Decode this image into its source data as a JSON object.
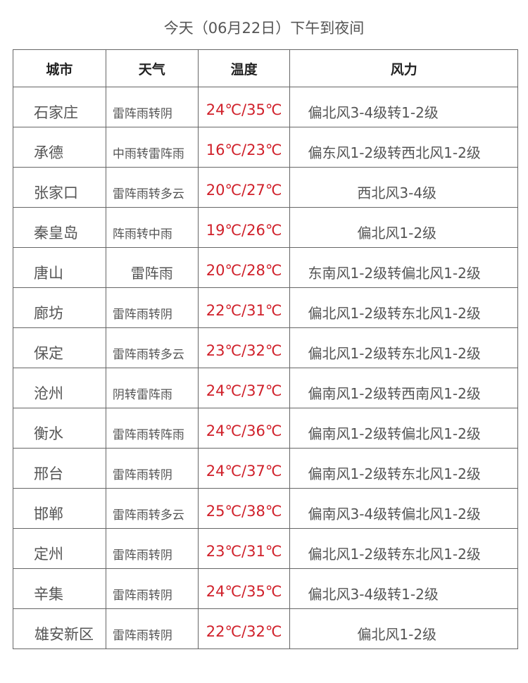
{
  "title": "今天（06月22日）下午到夜间",
  "headers": [
    "城市",
    "天气",
    "温度",
    "风力"
  ],
  "colors": {
    "temperature": "#d0202a",
    "text": "#555555"
  },
  "rows": [
    {
      "city": "石家庄",
      "weather": "雷阵雨转阴",
      "temp": "24℃/35℃",
      "wind": "偏北风3-4级转1-2级"
    },
    {
      "city": "承德",
      "weather": "中雨转雷阵雨",
      "temp": "16℃/23℃",
      "wind": "偏东风1-2级转西北风1-2级"
    },
    {
      "city": "张家口",
      "weather": "雷阵雨转多云",
      "temp": "20℃/27℃",
      "wind": "西北风3-4级"
    },
    {
      "city": "秦皇岛",
      "weather": "阵雨转中雨",
      "temp": "19℃/26℃",
      "wind": "偏北风1-2级"
    },
    {
      "city": "唐山",
      "weather": "雷阵雨",
      "temp": "20℃/28℃",
      "wind": "东南风1-2级转偏北风1-2级"
    },
    {
      "city": "廊坊",
      "weather": "雷阵雨转阴",
      "temp": "22℃/31℃",
      "wind": "偏北风1-2级转东北风1-2级"
    },
    {
      "city": "保定",
      "weather": "雷阵雨转多云",
      "temp": "23℃/32℃",
      "wind": "偏北风1-2级转东北风1-2级"
    },
    {
      "city": "沧州",
      "weather": "阴转雷阵雨",
      "temp": "24℃/37℃",
      "wind": "偏南风1-2级转西南风1-2级"
    },
    {
      "city": "衡水",
      "weather": "雷阵雨转阵雨",
      "temp": "24℃/36℃",
      "wind": "偏南风1-2级转偏北风1-2级"
    },
    {
      "city": "邢台",
      "weather": "雷阵雨转阴",
      "temp": "24℃/37℃",
      "wind": "偏南风1-2级转东北风1-2级"
    },
    {
      "city": "邯郸",
      "weather": "雷阵雨转多云",
      "temp": "25℃/38℃",
      "wind": "偏南风3-4级转偏北风1-2级"
    },
    {
      "city": "定州",
      "weather": "雷阵雨转阴",
      "temp": "23℃/31℃",
      "wind": "偏北风1-2级转东北风1-2级"
    },
    {
      "city": "辛集",
      "weather": "雷阵雨转阴",
      "temp": "24℃/35℃",
      "wind": "偏北风3-4级转1-2级"
    },
    {
      "city": "雄安新区",
      "weather": "雷阵雨转阴",
      "temp": "22℃/32℃",
      "wind": "偏北风1-2级"
    }
  ]
}
